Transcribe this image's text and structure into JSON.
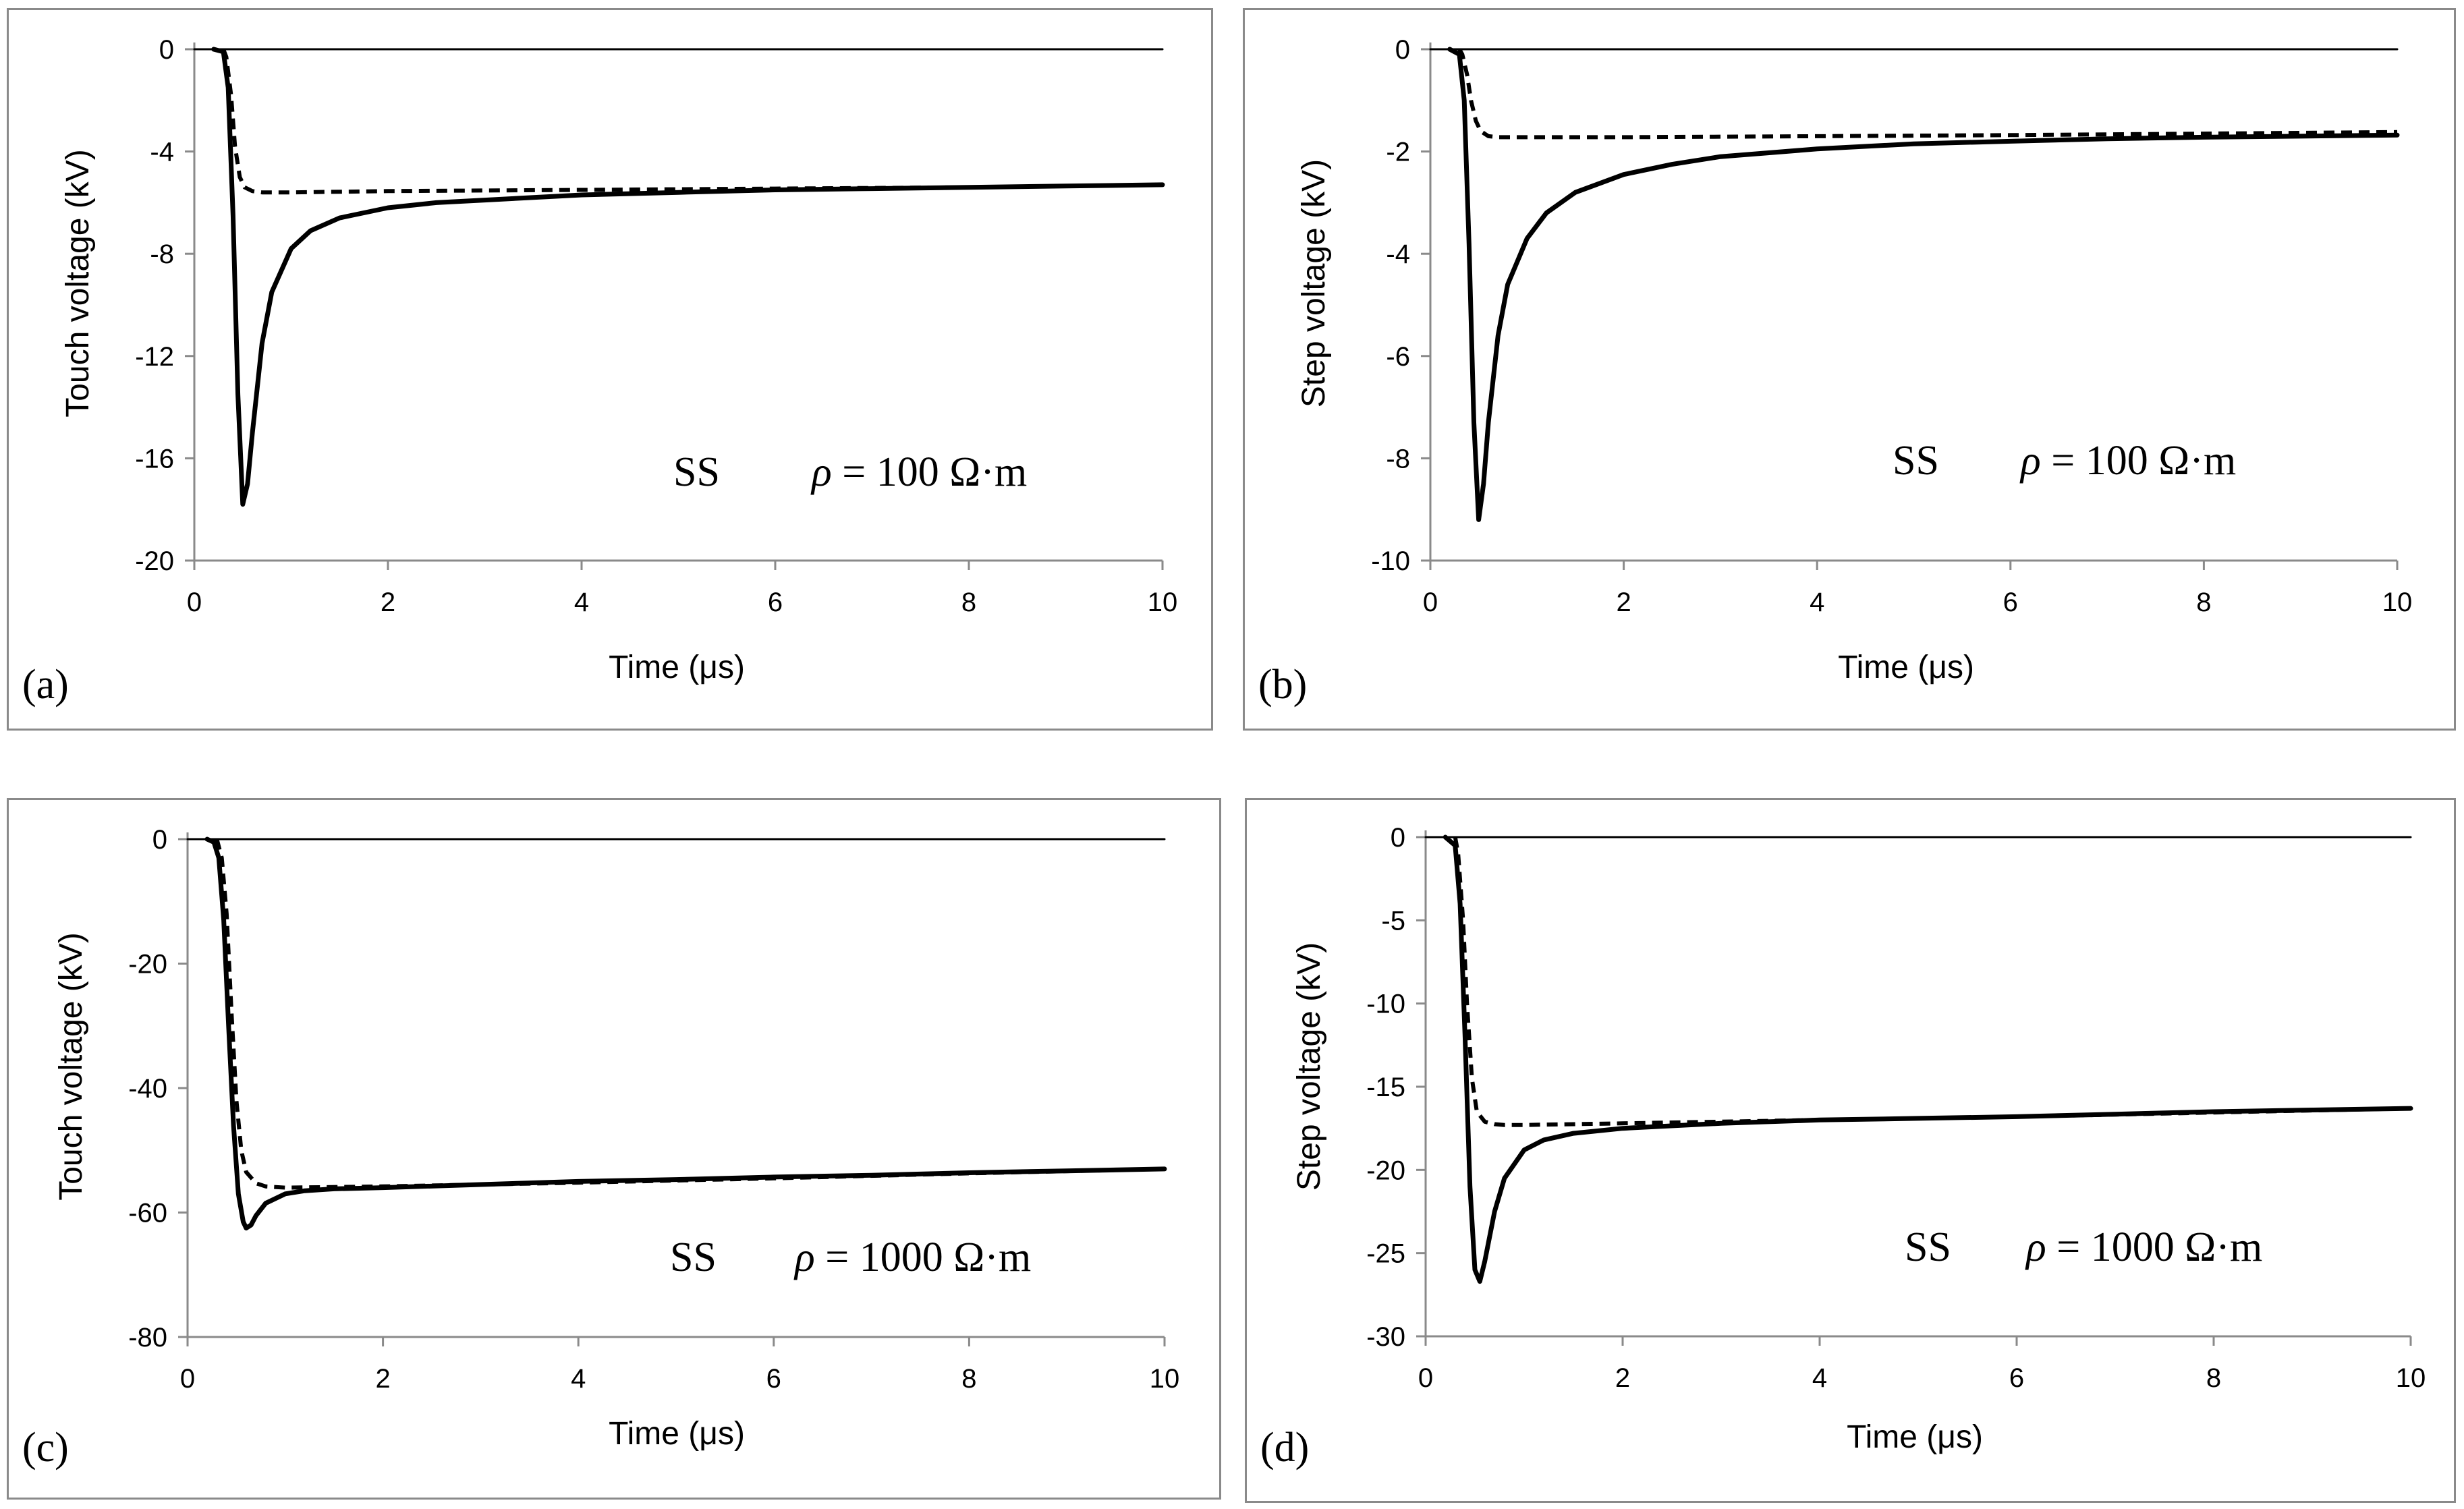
{
  "chart_data": [
    {
      "id": "a",
      "type": "line",
      "panel_label": "(a)",
      "annotation": {
        "label": "SS",
        "symbol": "ρ",
        "equation": " = 100 Ω·m"
      },
      "xlabel": "Time (μs)",
      "ylabel": "Touch voltage (kV)",
      "xlim": [
        0,
        10
      ],
      "ylim": [
        -20,
        0
      ],
      "xticks": [
        0,
        2,
        4,
        6,
        8,
        10
      ],
      "yticks": [
        0,
        -4,
        -8,
        -12,
        -16,
        -20
      ],
      "series": [
        {
          "name": "zero-reference",
          "style": "thin-solid",
          "x": [
            0,
            10
          ],
          "y": [
            0,
            0
          ]
        },
        {
          "name": "solid",
          "style": "solid",
          "x": [
            0.2,
            0.3,
            0.35,
            0.4,
            0.45,
            0.5,
            0.55,
            0.6,
            0.7,
            0.8,
            1.0,
            1.2,
            1.5,
            2.0,
            2.5,
            3.0,
            4.0,
            5.0,
            6.0,
            7.0,
            8.0,
            9.0,
            10.0
          ],
          "y": [
            0,
            -0.1,
            -1.5,
            -6.5,
            -13.5,
            -17.8,
            -17.0,
            -15.0,
            -11.5,
            -9.5,
            -7.8,
            -7.1,
            -6.6,
            -6.2,
            -6.0,
            -5.9,
            -5.7,
            -5.6,
            -5.5,
            -5.45,
            -5.4,
            -5.35,
            -5.3
          ]
        },
        {
          "name": "dashed",
          "style": "dashed",
          "x": [
            0.3,
            0.33,
            0.38,
            0.42,
            0.47,
            0.52,
            0.6,
            0.7,
            0.8,
            1.0,
            2.0,
            4.0,
            6.0,
            8.0,
            10.0
          ],
          "y": [
            0,
            -0.3,
            -1.8,
            -3.8,
            -5.0,
            -5.4,
            -5.55,
            -5.6,
            -5.6,
            -5.6,
            -5.55,
            -5.5,
            -5.45,
            -5.4,
            -5.3
          ]
        }
      ]
    },
    {
      "id": "b",
      "type": "line",
      "panel_label": "(b)",
      "annotation": {
        "label": "SS",
        "symbol": "ρ",
        "equation": " = 100 Ω·m"
      },
      "xlabel": "Time (μs)",
      "ylabel": "Step voltage (kV)",
      "xlim": [
        0,
        10
      ],
      "ylim": [
        -10,
        0
      ],
      "xticks": [
        0,
        2,
        4,
        6,
        8,
        10
      ],
      "yticks": [
        0,
        -2,
        -4,
        -6,
        -8,
        -10
      ],
      "series": [
        {
          "name": "zero-reference",
          "style": "thin-solid",
          "x": [
            0,
            10
          ],
          "y": [
            0,
            0
          ]
        },
        {
          "name": "solid",
          "style": "solid",
          "x": [
            0.2,
            0.3,
            0.35,
            0.4,
            0.45,
            0.5,
            0.55,
            0.6,
            0.7,
            0.8,
            1.0,
            1.2,
            1.5,
            2.0,
            2.5,
            3.0,
            4.0,
            5.0,
            6.0,
            7.0,
            8.0,
            9.0,
            10.0
          ],
          "y": [
            0,
            -0.1,
            -1.0,
            -3.8,
            -7.3,
            -9.2,
            -8.5,
            -7.3,
            -5.6,
            -4.6,
            -3.7,
            -3.2,
            -2.8,
            -2.45,
            -2.25,
            -2.1,
            -1.95,
            -1.85,
            -1.8,
            -1.75,
            -1.72,
            -1.7,
            -1.68
          ]
        },
        {
          "name": "dashed",
          "style": "dashed",
          "x": [
            0.3,
            0.33,
            0.38,
            0.42,
            0.47,
            0.52,
            0.6,
            0.7,
            0.8,
            1.0,
            2.0,
            4.0,
            6.0,
            8.0,
            10.0
          ],
          "y": [
            0,
            -0.1,
            -0.5,
            -1.0,
            -1.4,
            -1.6,
            -1.7,
            -1.72,
            -1.72,
            -1.72,
            -1.72,
            -1.7,
            -1.68,
            -1.65,
            -1.62
          ]
        }
      ]
    },
    {
      "id": "c",
      "type": "line",
      "panel_label": "(c)",
      "annotation": {
        "label": "SS",
        "symbol": "ρ",
        "equation": " = 1000 Ω·m"
      },
      "xlabel": "Time (μs)",
      "ylabel": "Touch voltage (kV)",
      "xlim": [
        0,
        10
      ],
      "ylim": [
        -80,
        0
      ],
      "xticks": [
        0,
        2,
        4,
        6,
        8,
        10
      ],
      "yticks": [
        0,
        -20,
        -40,
        -60,
        -80
      ],
      "series": [
        {
          "name": "zero-reference",
          "style": "thin-solid",
          "x": [
            0,
            10
          ],
          "y": [
            0,
            0
          ]
        },
        {
          "name": "solid",
          "style": "solid",
          "x": [
            0.2,
            0.27,
            0.32,
            0.37,
            0.42,
            0.47,
            0.52,
            0.57,
            0.6,
            0.65,
            0.7,
            0.8,
            1.0,
            1.2,
            1.5,
            2.0,
            3.0,
            4.0,
            5.0,
            6.0,
            7.0,
            8.0,
            9.0,
            10.0
          ],
          "y": [
            0,
            -0.5,
            -3,
            -13,
            -30,
            -46,
            -57,
            -61.5,
            -62.5,
            -62,
            -60.5,
            -58.5,
            -57,
            -56.5,
            -56.2,
            -56,
            -55.5,
            -55,
            -54.7,
            -54.3,
            -54,
            -53.6,
            -53.3,
            -53
          ]
        },
        {
          "name": "dashed",
          "style": "dashed",
          "x": [
            0.3,
            0.35,
            0.4,
            0.45,
            0.5,
            0.55,
            0.6,
            0.7,
            0.8,
            1.0,
            2.0,
            4.0,
            6.0,
            8.0,
            10.0
          ],
          "y": [
            0,
            -3,
            -12,
            -28,
            -42,
            -50,
            -53.5,
            -55.3,
            -55.8,
            -56,
            -55.8,
            -55.2,
            -54.5,
            -53.7,
            -53
          ]
        }
      ]
    },
    {
      "id": "d",
      "type": "line",
      "panel_label": "(d)",
      "annotation": {
        "label": "SS",
        "symbol": "ρ",
        "equation": " = 1000 Ω·m"
      },
      "xlabel": "Time (μs)",
      "ylabel": "Step voltage (kV)",
      "xlim": [
        0,
        10
      ],
      "ylim": [
        -30,
        0
      ],
      "xticks": [
        0,
        2,
        4,
        6,
        8,
        10
      ],
      "yticks": [
        0,
        -5,
        -10,
        -15,
        -20,
        -25,
        -30
      ],
      "series": [
        {
          "name": "zero-reference",
          "style": "thin-solid",
          "x": [
            0,
            10
          ],
          "y": [
            0,
            0
          ]
        },
        {
          "name": "solid",
          "style": "solid",
          "x": [
            0.2,
            0.3,
            0.35,
            0.4,
            0.45,
            0.5,
            0.55,
            0.6,
            0.7,
            0.8,
            1.0,
            1.2,
            1.5,
            2.0,
            3.0,
            4.0,
            5.0,
            6.0,
            7.0,
            8.0,
            9.0,
            10.0
          ],
          "y": [
            0,
            -0.5,
            -4,
            -12,
            -21,
            -26,
            -26.7,
            -25.5,
            -22.5,
            -20.5,
            -18.8,
            -18.2,
            -17.8,
            -17.5,
            -17.2,
            -17.0,
            -16.9,
            -16.8,
            -16.65,
            -16.5,
            -16.4,
            -16.3
          ]
        },
        {
          "name": "dashed",
          "style": "dashed",
          "x": [
            0.3,
            0.33,
            0.38,
            0.42,
            0.47,
            0.52,
            0.6,
            0.7,
            0.8,
            1.0,
            2.0,
            4.0,
            6.0,
            8.0,
            10.0
          ],
          "y": [
            0,
            -1,
            -5,
            -10,
            -14.5,
            -16.5,
            -17.1,
            -17.25,
            -17.3,
            -17.3,
            -17.2,
            -17.0,
            -16.8,
            -16.55,
            -16.3
          ]
        }
      ]
    }
  ]
}
